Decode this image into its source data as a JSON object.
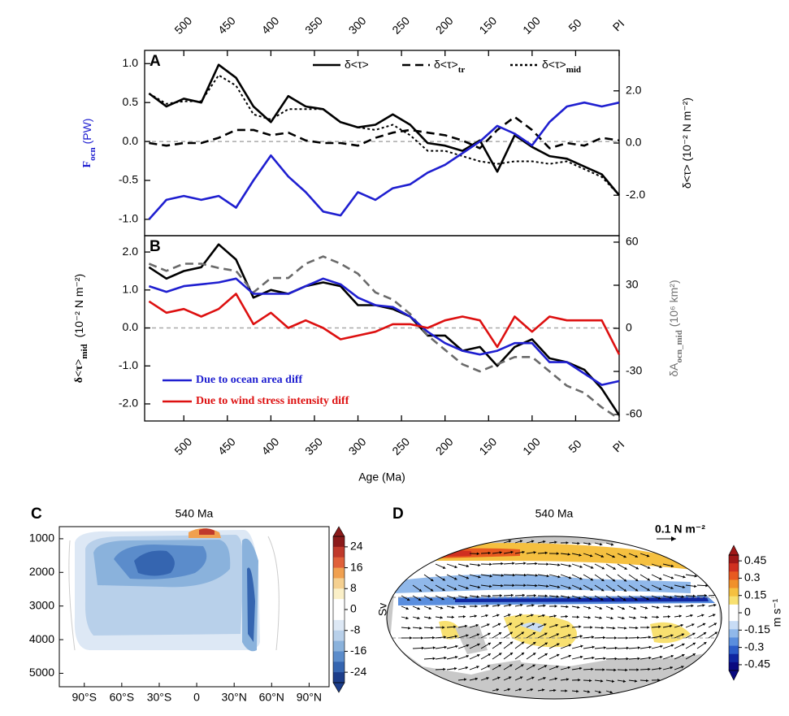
{
  "chart_data": [
    {
      "type": "line",
      "label": "A",
      "x": [
        540,
        520,
        500,
        480,
        460,
        440,
        420,
        400,
        380,
        360,
        340,
        320,
        300,
        280,
        260,
        240,
        220,
        200,
        180,
        160,
        140,
        120,
        100,
        80,
        60,
        40,
        20,
        0
      ],
      "xlim": [
        545,
        0
      ],
      "xticks": [
        500,
        450,
        400,
        350,
        300,
        250,
        200,
        150,
        100,
        50,
        {
          "value": 0,
          "label": "PI"
        }
      ],
      "ylim": [
        -1.21,
        1.17
      ],
      "yticks": [
        {
          "value": -1,
          "label": "-1.0"
        },
        {
          "value": -0.5,
          "label": "-0.5"
        },
        {
          "value": 0,
          "label": "0.0"
        },
        {
          "value": 0.5,
          "label": "0.5"
        },
        {
          "value": 1,
          "label": "1.0"
        }
      ],
      "y2lim": [
        -3.55,
        3.55
      ],
      "y2ticks": [
        {
          "value": -2,
          "label": "-2.0"
        },
        {
          "value": 0,
          "label": "0.0"
        },
        {
          "value": 2,
          "label": "2.0"
        }
      ],
      "ylabel": "F",
      "ylabel_sub": "ocn",
      "ylabel_unit": "(PW)",
      "ycolor": "#1f1fd0",
      "y2label": "δ<τ> (10⁻² N m⁻²)",
      "y2color": "#000000",
      "legend": "upper right",
      "series": [
        {
          "name": "δ<τ>",
          "color": "#000000",
          "dash": "solid",
          "axis": "y2",
          "values": [
            1.9,
            1.4,
            1.7,
            1.55,
            3.0,
            2.5,
            1.4,
            0.8,
            1.8,
            1.4,
            1.3,
            0.8,
            0.6,
            0.7,
            1.1,
            0.7,
            0.0,
            -0.1,
            -0.3,
            0.1,
            -1.1,
            0.3,
            -0.15,
            -0.5,
            -0.6,
            -0.9,
            -1.2,
            -2.0
          ]
        },
        {
          "name": "δ<τ>",
          "name_sub": "tr",
          "color": "#000000",
          "dash": "dashed",
          "axis": "y2",
          "values": [
            0.0,
            -0.1,
            0.0,
            0.0,
            0.2,
            0.5,
            0.5,
            0.3,
            0.4,
            0.1,
            0.0,
            0.0,
            -0.1,
            0.2,
            0.4,
            0.5,
            0.4,
            0.3,
            0.1,
            -0.2,
            0.5,
            1.0,
            0.5,
            -0.2,
            0.0,
            -0.1,
            0.2,
            0.1
          ]
        },
        {
          "name": "δ<τ>",
          "name_sub": "mid",
          "color": "#000000",
          "dash": "dotted",
          "axis": "y2",
          "values": [
            1.9,
            1.5,
            1.6,
            1.6,
            2.6,
            2.2,
            1.1,
            0.9,
            1.3,
            1.3,
            1.3,
            0.8,
            0.6,
            0.5,
            0.7,
            0.3,
            -0.3,
            -0.3,
            -0.5,
            -0.7,
            -0.8,
            -0.7,
            -0.7,
            -0.8,
            -0.7,
            -1.0,
            -1.3,
            -2.0
          ]
        },
        {
          "color": "#1f1fd0",
          "dash": "solid",
          "values": [
            -1.0,
            -0.75,
            -0.7,
            -0.75,
            -0.7,
            -0.85,
            -0.5,
            -0.18,
            -0.45,
            -0.65,
            -0.9,
            -0.95,
            -0.65,
            -0.75,
            -0.6,
            -0.55,
            -0.4,
            -0.3,
            -0.15,
            0.0,
            0.2,
            0.1,
            -0.05,
            0.25,
            0.45,
            0.5,
            0.45,
            0.5
          ]
        }
      ]
    },
    {
      "type": "line",
      "label": "B",
      "x": [
        540,
        520,
        500,
        480,
        460,
        440,
        420,
        400,
        380,
        360,
        340,
        320,
        300,
        280,
        260,
        240,
        220,
        200,
        180,
        160,
        140,
        120,
        100,
        80,
        60,
        40,
        20,
        0
      ],
      "xlim": [
        545,
        0
      ],
      "xticks": [
        500,
        450,
        400,
        350,
        300,
        250,
        200,
        150,
        100,
        50,
        {
          "value": 0,
          "label": "PI"
        }
      ],
      "xlabel": "Age (Ma)",
      "ylim": [
        -2.45,
        2.43
      ],
      "yticks": [
        {
          "value": -2,
          "label": "-2.0"
        },
        {
          "value": -1,
          "label": "-1.0"
        },
        {
          "value": 0,
          "label": "0.0"
        },
        {
          "value": 1,
          "label": "1.0"
        },
        {
          "value": 2,
          "label": "2.0"
        }
      ],
      "y2lim": [
        -64.5,
        64.5
      ],
      "y2ticks": [
        -60,
        -30,
        0,
        30,
        60
      ],
      "ylabel": "δ<τ>",
      "ylabel_sub": "mid",
      "ylabel_unit": " (10⁻² N m⁻²)",
      "ycolor": "#000000",
      "y2label": "δA",
      "y2label_sub": "ocn_mid",
      "y2label_unit": " (10⁶ km²)",
      "y2color": "#707070",
      "legend": "lower left",
      "series": [
        {
          "color": "#000000",
          "dash": "solid",
          "values": [
            1.6,
            1.3,
            1.5,
            1.6,
            2.2,
            1.8,
            0.8,
            1.0,
            0.9,
            1.1,
            1.2,
            1.1,
            0.6,
            0.6,
            0.5,
            0.3,
            -0.2,
            -0.2,
            -0.6,
            -0.5,
            -1.0,
            -0.5,
            -0.3,
            -0.8,
            -0.9,
            -1.1,
            -1.6,
            -2.3
          ]
        },
        {
          "color": "#6a6a6a",
          "dash": "dashed",
          "axis": "y2",
          "values": [
            45,
            40,
            45,
            45,
            42,
            40,
            25,
            35,
            35,
            45,
            50,
            45,
            38,
            25,
            20,
            10,
            -5,
            -15,
            -25,
            -30,
            -25,
            -20,
            -20,
            -30,
            -40,
            -45,
            -55,
            -63
          ]
        },
        {
          "name": "Due to ocean area diff",
          "color": "#1f1fd0",
          "dash": "solid",
          "values": [
            1.1,
            0.95,
            1.1,
            1.15,
            1.2,
            1.3,
            0.9,
            0.9,
            0.9,
            1.1,
            1.3,
            1.15,
            0.8,
            0.6,
            0.55,
            0.3,
            -0.1,
            -0.4,
            -0.6,
            -0.7,
            -0.6,
            -0.4,
            -0.4,
            -0.9,
            -0.9,
            -1.2,
            -1.5,
            -1.4
          ]
        },
        {
          "name": "Due to wind stress intensity diff",
          "color": "#dd1010",
          "dash": "solid",
          "values": [
            0.7,
            0.4,
            0.5,
            0.3,
            0.5,
            0.9,
            0.1,
            0.4,
            0.0,
            0.2,
            0.0,
            -0.3,
            -0.2,
            -0.1,
            0.1,
            0.1,
            0.0,
            0.2,
            0.3,
            0.2,
            -0.5,
            0.3,
            -0.1,
            0.3,
            0.2,
            0.2,
            0.2,
            -0.7
          ]
        }
      ]
    },
    {
      "type": "contour",
      "label": "C",
      "title": "540 Ma",
      "xlim": [
        -110,
        106
      ],
      "xticks": [
        {
          "value": -90,
          "label": "90°S"
        },
        {
          "value": -60,
          "label": "60°S"
        },
        {
          "value": -30,
          "label": "30°S"
        },
        0,
        {
          "value": 30,
          "label": "30°N"
        },
        {
          "value": 60,
          "label": "60°N"
        },
        {
          "value": 90,
          "label": "90°N"
        }
      ],
      "ylim": [
        5400,
        640
      ],
      "yticks": [
        1000,
        2000,
        3000,
        4000,
        5000
      ],
      "colorbar": {
        "label": "Sv",
        "clim": [
          -28,
          28
        ],
        "ticks": [
          24,
          16,
          8,
          0,
          -8,
          -16,
          -24
        ],
        "colors": [
          "#8b1a1a",
          "#c0392b",
          "#e0603a",
          "#f0a050",
          "#f5d090",
          "#fbf0c8",
          "#ffffff",
          "#ffffff",
          "#dde8f5",
          "#b8d0ea",
          "#8ab2dc",
          "#5b8ccb",
          "#3565b0",
          "#1c3d8a"
        ]
      }
    },
    {
      "type": "map",
      "label": "D",
      "title": "540 Ma",
      "reference_vector": "0.1 N m⁻²",
      "colorbar": {
        "label": "m s⁻¹",
        "clim": [
          -0.5,
          0.5
        ],
        "ticks": [
          0.45,
          0.3,
          0.15,
          0,
          -0.15,
          -0.3,
          -0.45
        ],
        "colors": [
          "#a01818",
          "#d03020",
          "#e85a20",
          "#f0902a",
          "#f5c040",
          "#f8e070",
          "#ffffff",
          "#ffffff",
          "#c8dcf5",
          "#90b8ea",
          "#5a8ede",
          "#2c5cc8",
          "#1026a0",
          "#0a0a80"
        ]
      }
    }
  ]
}
